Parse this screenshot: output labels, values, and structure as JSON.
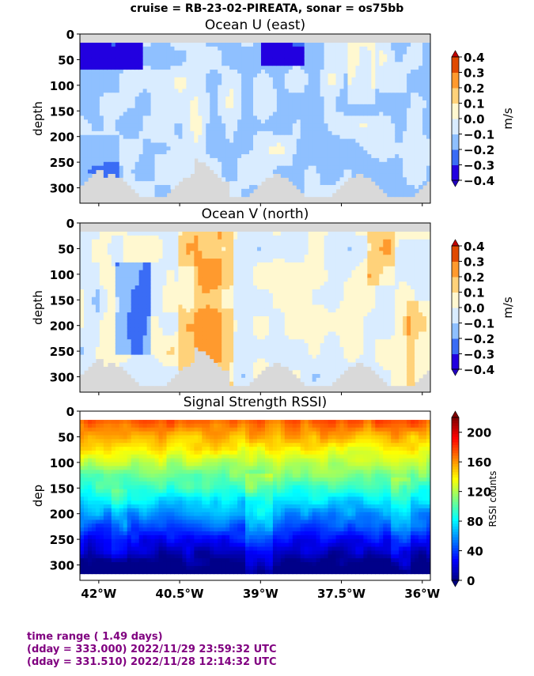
{
  "figure": {
    "suptitle": "cruise = RB-23-02-PIREATA,  sonar = os75bb",
    "footer": {
      "line1": "time range ( 1.49 days)",
      "line2": "(dday = 333.000) 2022/11/29 23:59:32 UTC",
      "line3": "(dday = 331.510) 2022/11/28 12:14:32 UTC"
    }
  },
  "chart_data": [
    {
      "type": "heatmap",
      "title": "Ocean U (east)",
      "xlabel": "",
      "ylabel": "depth",
      "x_range": [
        -42.35,
        -35.85
      ],
      "y_range": [
        330,
        0
      ],
      "y_ticks": [
        0,
        50,
        100,
        150,
        200,
        250,
        300
      ],
      "x_ticks": [
        -42,
        -40.5,
        -39,
        -37.5,
        -36
      ],
      "x_tick_labels": [
        "",
        "",
        "",
        "",
        ""
      ],
      "colorbar": {
        "label": "m/s",
        "ticks": [
          0.4,
          0.3,
          0.2,
          0.1,
          0.0,
          -0.1,
          -0.2,
          -0.3,
          -0.4
        ],
        "tick_labels": [
          "0.4",
          "0.3",
          "0.2",
          "0.1",
          "0.0",
          "−0.1",
          "−0.2",
          "−0.3",
          "−0.4"
        ],
        "colors": [
          "#2200e0",
          "#3a6cf5",
          "#8fc0ff",
          "#d9ecff",
          "#fff8d0",
          "#ffd27a",
          "#ff9a2e",
          "#e04a00"
        ]
      },
      "value_range": [
        -0.4,
        0.4
      ],
      "grid": false
    },
    {
      "type": "heatmap",
      "title": "Ocean V (north)",
      "xlabel": "",
      "ylabel": "depth",
      "x_range": [
        -42.35,
        -35.85
      ],
      "y_range": [
        330,
        0
      ],
      "y_ticks": [
        0,
        50,
        100,
        150,
        200,
        250,
        300
      ],
      "x_ticks": [
        -42,
        -40.5,
        -39,
        -37.5,
        -36
      ],
      "x_tick_labels": [
        "",
        "",
        "",
        "",
        ""
      ],
      "colorbar": {
        "label": "m/s",
        "ticks": [
          0.4,
          0.3,
          0.2,
          0.1,
          0.0,
          -0.1,
          -0.2,
          -0.3,
          -0.4
        ],
        "tick_labels": [
          "0.4",
          "0.3",
          "0.2",
          "0.1",
          "0.0",
          "−0.1",
          "−0.2",
          "−0.3",
          "−0.4"
        ],
        "colors": [
          "#2200e0",
          "#3a6cf5",
          "#8fc0ff",
          "#d9ecff",
          "#fff8d0",
          "#ffd27a",
          "#ff9a2e",
          "#e04a00"
        ]
      },
      "value_range": [
        -0.4,
        0.4
      ],
      "grid": false
    },
    {
      "type": "heatmap",
      "title": "Signal Strength RSSI)",
      "xlabel": "",
      "ylabel": "dep",
      "x_range": [
        -42.35,
        -35.85
      ],
      "y_range": [
        330,
        0
      ],
      "y_ticks": [
        0,
        50,
        100,
        150,
        200,
        250,
        300
      ],
      "x_ticks": [
        -42,
        -40.5,
        -39,
        -37.5,
        -36
      ],
      "x_tick_labels": [
        "42°W",
        "40.5°W",
        "39°W",
        "37.5°W",
        "36°W"
      ],
      "colorbar": {
        "label": "RSSI counts",
        "ticks": [
          200,
          160,
          120,
          80,
          40,
          0
        ],
        "tick_labels": [
          "200",
          "160",
          "120",
          "80",
          "40",
          "0"
        ],
        "colors": [
          "#00007f",
          "#0000ff",
          "#0080ff",
          "#00e0ff",
          "#80ff80",
          "#ffe000",
          "#ff6000",
          "#800000"
        ]
      },
      "value_range": [
        0,
        220
      ],
      "grid": false
    }
  ]
}
